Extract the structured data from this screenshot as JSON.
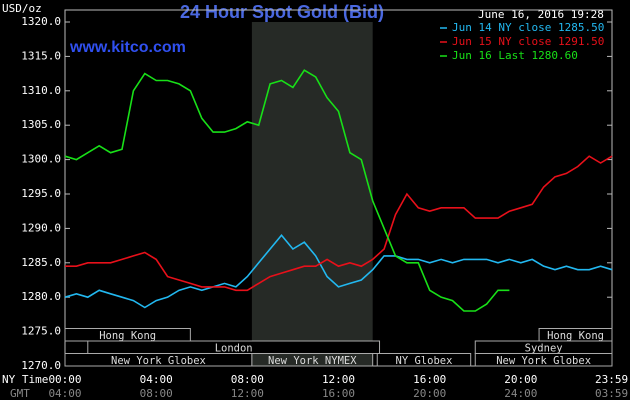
{
  "chart_data": {
    "type": "line",
    "title": "24 Hour Spot Gold (Bid)",
    "site": "www.kitco.com",
    "timestamp": "June 16, 2016 19:28",
    "y_label": "USD/oz",
    "x_label": "NY Time",
    "x2_label": "GMT",
    "x": [
      0,
      0.5,
      1,
      1.5,
      2,
      2.5,
      3,
      3.5,
      4,
      4.5,
      5,
      5.5,
      6,
      6.5,
      7,
      7.5,
      8,
      8.5,
      9,
      9.5,
      10,
      10.5,
      11,
      11.5,
      12,
      12.5,
      13,
      13.5,
      14,
      14.5,
      15,
      15.5,
      16,
      16.5,
      17,
      17.5,
      18,
      18.5,
      19,
      19.5,
      20,
      20.5,
      21,
      21.5,
      22,
      22.5,
      23,
      23.5,
      24
    ],
    "series": [
      {
        "name": "Jun 14 NY close 1285.50",
        "color": "#22b8f0",
        "values": [
          1280,
          1280.5,
          1280,
          1281,
          1280.5,
          1280,
          1279.5,
          1278.5,
          1279.5,
          1280,
          1281,
          1281.5,
          1281,
          1281.5,
          1282,
          1281.5,
          1283,
          1285,
          1287,
          1289,
          1287,
          1288,
          1286,
          1283,
          1281.5,
          1282,
          1282.5,
          1284,
          1286,
          1286,
          1285.5,
          1285.5,
          1285,
          1285.5,
          1285,
          1285.5,
          1285.5,
          1285.5,
          1285,
          1285.5,
          1285,
          1285.5,
          1284.5,
          1284,
          1284.5,
          1284,
          1284,
          1284.5,
          1284
        ]
      },
      {
        "name": "Jun 15 NY close 1291.50",
        "color": "#e8101a",
        "values": [
          1284.5,
          1284.5,
          1285,
          1285,
          1285,
          1285.5,
          1286,
          1286.5,
          1285.5,
          1283,
          1282.5,
          1282,
          1281.5,
          1281.5,
          1281.5,
          1281,
          1281,
          1282,
          1283,
          1283.5,
          1284,
          1284.5,
          1284.5,
          1285.5,
          1284.5,
          1285,
          1284.5,
          1285.5,
          1287,
          1292,
          1295,
          1293,
          1292.5,
          1293,
          1293,
          1293,
          1291.5,
          1291.5,
          1291.5,
          1292.5,
          1293,
          1293.5,
          1296,
          1297.5,
          1298,
          1299,
          1300.5,
          1299.5,
          1300.5
        ]
      },
      {
        "name": "Jun 16 Last 1280.60",
        "color": "#18e018",
        "values": [
          1300.5,
          1300,
          1301,
          1302,
          1301,
          1301.5,
          1310,
          1312.5,
          1311.5,
          1311.5,
          1311,
          1310,
          1306,
          1304,
          1304,
          1304.5,
          1305.5,
          1305,
          1311,
          1311.5,
          1310.5,
          1313,
          1312,
          1309,
          1307,
          1301,
          1300,
          1294,
          1290,
          1286,
          1285,
          1285,
          1281,
          1280,
          1279.5,
          1278,
          1278,
          1279,
          1281,
          1281,
          null,
          null,
          null,
          null,
          null,
          null,
          null,
          null,
          null
        ]
      }
    ],
    "xlim": [
      0,
      24
    ],
    "xticks": [
      {
        "value": 0,
        "label": "00:00"
      },
      {
        "value": 4,
        "label": "04:00"
      },
      {
        "value": 8,
        "label": "08:00"
      },
      {
        "value": 12,
        "label": "12:00"
      },
      {
        "value": 16,
        "label": "16:00"
      },
      {
        "value": 20,
        "label": "20:00"
      },
      {
        "value": 23.983,
        "label": "23:59"
      }
    ],
    "x2ticks": [
      "04:00",
      "08:00",
      "12:00",
      "16:00",
      "20:00",
      "24:00",
      "03:59"
    ],
    "ylim": [
      1270,
      1320
    ],
    "yticks": [
      {
        "value": 1270,
        "label": "1270.0"
      },
      {
        "value": 1275,
        "label": "1275.0"
      },
      {
        "value": 1280,
        "label": "1280.0"
      },
      {
        "value": 1285,
        "label": "1285.0"
      },
      {
        "value": 1290,
        "label": "1290.0"
      },
      {
        "value": 1295,
        "label": "1295.0"
      },
      {
        "value": 1300,
        "label": "1300.0"
      },
      {
        "value": 1305,
        "label": "1305.0"
      },
      {
        "value": 1310,
        "label": "1310.0"
      },
      {
        "value": 1315,
        "label": "1315.0"
      },
      {
        "value": 1320,
        "label": "1320.0"
      }
    ],
    "session_rows": [
      [
        {
          "label": "Hong Kong",
          "start": 0,
          "end": 5.5
        },
        {
          "label": "Hong Kong",
          "start": 20.8,
          "end": 24
        }
      ],
      [
        {
          "label": "London",
          "start": 1,
          "end": 13.8
        },
        {
          "label": "Sydney",
          "start": 18,
          "end": 24
        }
      ],
      [
        {
          "label": "New York Globex",
          "start": 0,
          "end": 8.2
        },
        {
          "label": "New York NYMEX",
          "start": 8.2,
          "end": 13.5,
          "shaded": true
        },
        {
          "label": "NY Globex",
          "start": 13.7,
          "end": 17.8
        },
        {
          "label": "New York Globex",
          "start": 18,
          "end": 24
        }
      ]
    ]
  }
}
